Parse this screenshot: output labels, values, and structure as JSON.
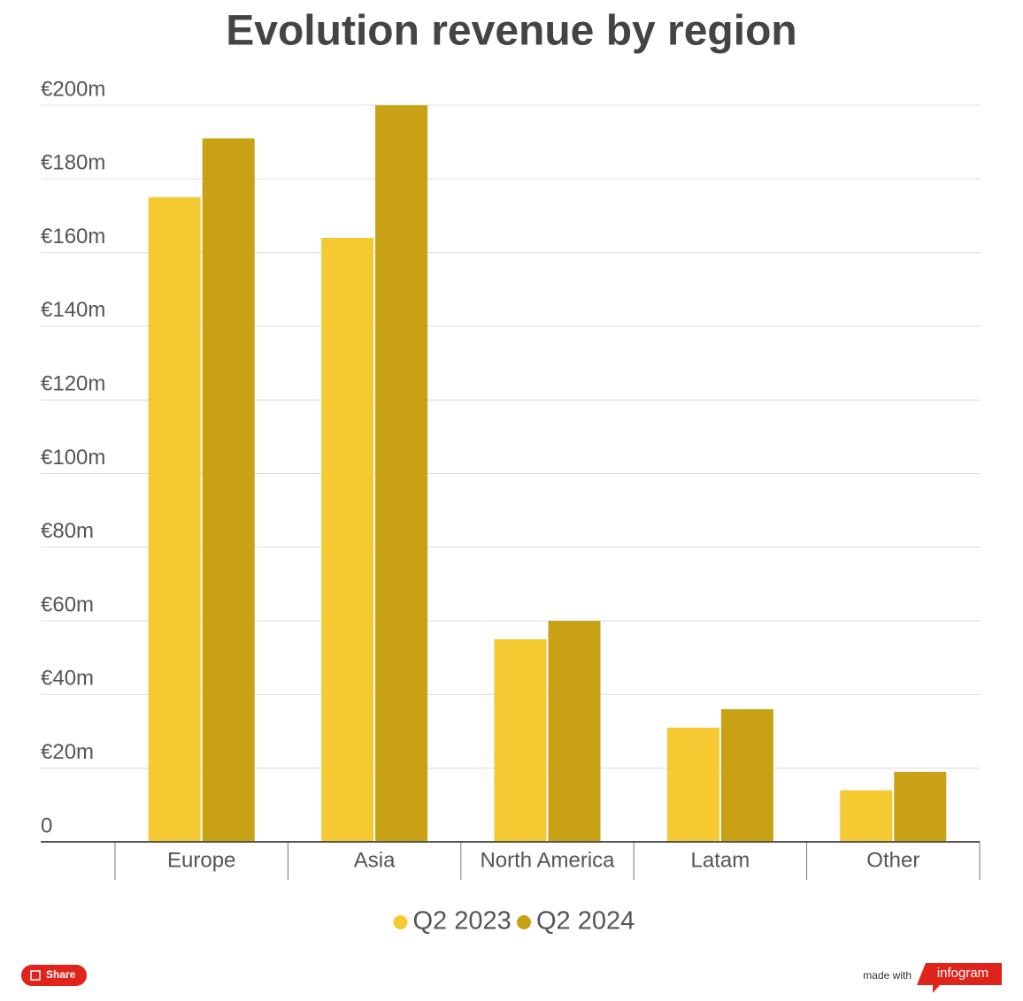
{
  "chart_data": {
    "type": "bar",
    "title": "Evolution revenue by region",
    "categories": [
      "Europe",
      "Asia",
      "North America",
      "Latam",
      "Other"
    ],
    "series": [
      {
        "name": "Q2 2023",
        "color": "#f4c932",
        "values": [
          175,
          164,
          55,
          31,
          14
        ]
      },
      {
        "name": "Q2 2024",
        "color": "#c9a114",
        "values": [
          191,
          200,
          60,
          36,
          19
        ]
      }
    ],
    "ylim": [
      0,
      200
    ],
    "yticks": [
      0,
      {
        "value": 20,
        "label": "€20m"
      },
      {
        "value": 40,
        "label": "€40m"
      },
      {
        "value": 60,
        "label": "€60m"
      },
      {
        "value": 80,
        "label": "€80m"
      },
      {
        "value": 100,
        "label": "€100m"
      },
      {
        "value": 120,
        "label": "€120m"
      },
      {
        "value": 140,
        "label": "€140m"
      },
      {
        "value": 160,
        "label": "€160m"
      },
      {
        "value": 180,
        "label": "€180m"
      },
      {
        "value": 200,
        "label": "€200m"
      }
    ],
    "grid": true,
    "legend": "bottom"
  },
  "footer": {
    "share": "Share",
    "made_with": "made with",
    "brand": "infogram"
  }
}
